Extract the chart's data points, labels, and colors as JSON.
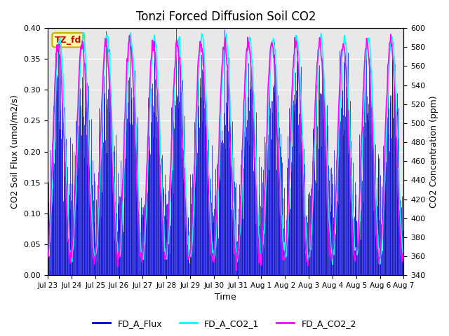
{
  "title": "Tonzi Forced Diffusion Soil CO2",
  "xlabel": "Time",
  "ylabel_left": "CO2 Soil Flux (umol/m2/s)",
  "ylabel_right": "CO2 Concentration (ppm)",
  "ylim_left": [
    0.0,
    0.4
  ],
  "ylim_right": [
    340,
    600
  ],
  "yticks_left": [
    0.0,
    0.05,
    0.1,
    0.15,
    0.2,
    0.25,
    0.3,
    0.35,
    0.4
  ],
  "yticks_right": [
    340,
    360,
    380,
    400,
    420,
    440,
    460,
    480,
    500,
    520,
    540,
    560,
    580,
    600
  ],
  "bg_color": "#e8e8e8",
  "flux_color": "#0000cc",
  "co2_1_color": "#00ffff",
  "co2_2_color": "#ff00ff",
  "tag_text": "TZ_fd",
  "tag_bg": "#ffffaa",
  "tag_border": "#ccaa00",
  "tag_text_color": "#cc0000",
  "legend_labels": [
    "FD_A_Flux",
    "FD_A_CO2_1",
    "FD_A_CO2_2"
  ],
  "n_days": 15,
  "points_per_day": 48,
  "flux_seed": 123,
  "co2_seed": 42,
  "day_labels": [
    "Jul 23",
    "Jul 24",
    "Jul 25",
    "Jul 26",
    "Jul 27",
    "Jul 28",
    "Jul 29",
    "Jul 30",
    "Jul 31",
    "Aug 1",
    "Aug 2",
    "Aug 3",
    "Aug 4",
    "Aug 5",
    "Aug 6",
    "Aug 7"
  ]
}
